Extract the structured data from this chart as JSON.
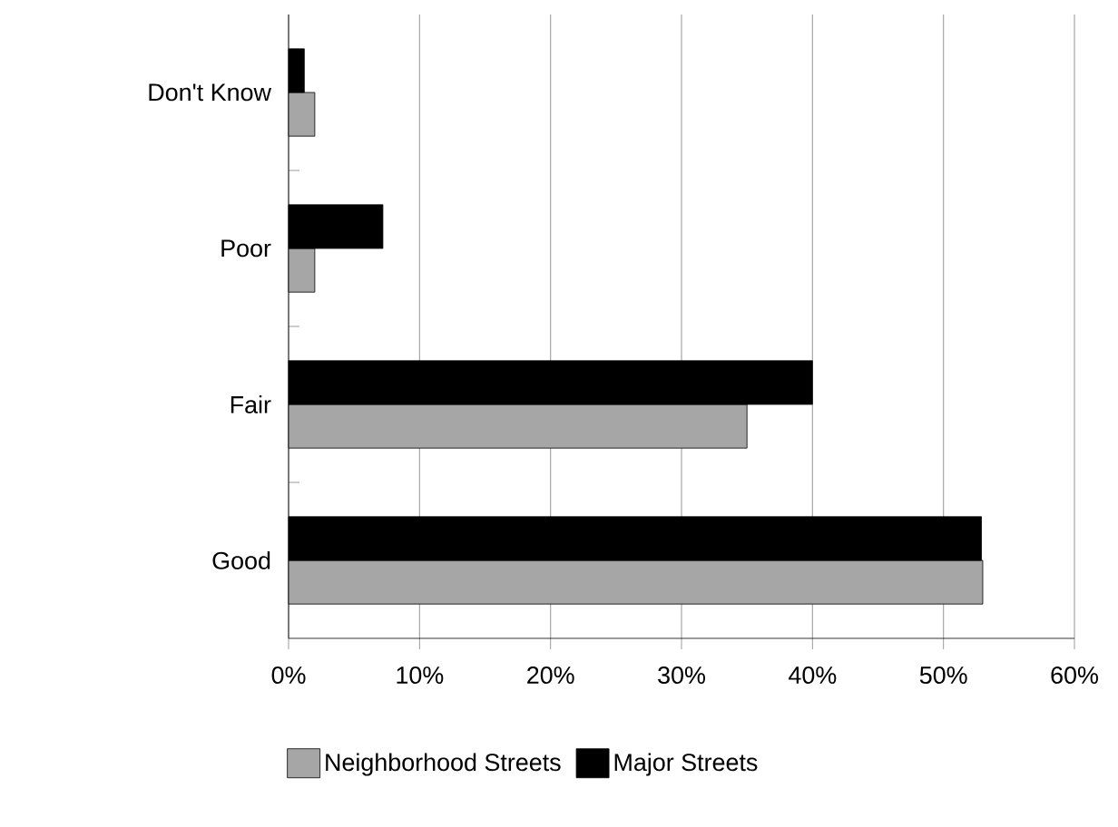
{
  "chart_data": {
    "type": "bar",
    "orientation": "horizontal",
    "categories": [
      "Don't Know",
      "Poor",
      "Fair",
      "Good"
    ],
    "series": [
      {
        "name": "Neighborhood Streets",
        "color": "#a6a6a6",
        "values": [
          2,
          2,
          35,
          53
        ]
      },
      {
        "name": "Major Streets",
        "color": "#000000",
        "values": [
          1.2,
          7.2,
          40,
          52.9
        ]
      }
    ],
    "xlim": [
      0,
      60
    ],
    "xticks": [
      {
        "value": 0,
        "label": "0%"
      },
      {
        "value": 10,
        "label": "10%"
      },
      {
        "value": 20,
        "label": "20%"
      },
      {
        "value": 30,
        "label": "30%"
      },
      {
        "value": 40,
        "label": "40%"
      },
      {
        "value": 50,
        "label": "50%"
      },
      {
        "value": 60,
        "label": "60%"
      }
    ],
    "grid": "x",
    "legend": "bottom"
  }
}
